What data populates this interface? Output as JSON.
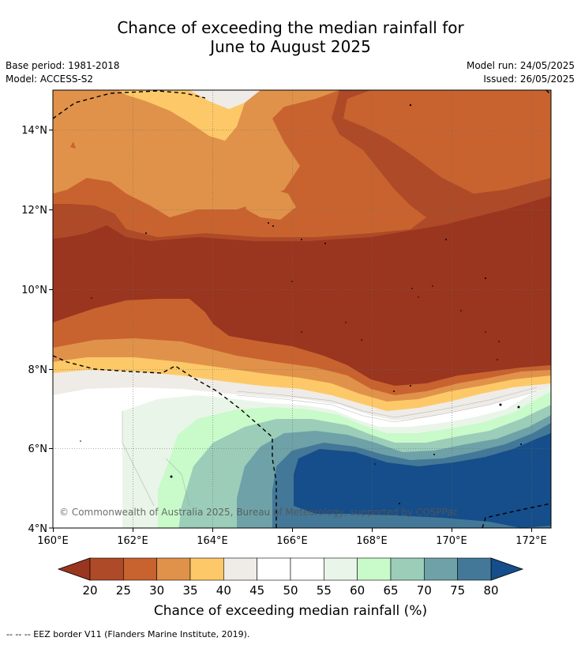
{
  "title_line1": "Chance of exceeding the median rainfall for",
  "title_line2": "June to August 2025",
  "base_period": "Base period: 1981-2018",
  "model": "Model: ACCESS-S2",
  "model_run": "Model run: 24/05/2025",
  "issued": "Issued: 26/05/2025",
  "copyright": "© Commonwealth of Australia 2025, Bureau of Meteorology, supported by COSPPac",
  "y_ticks": [
    "14°N",
    "12°N",
    "10°N",
    "8°N",
    "6°N",
    "4°N"
  ],
  "x_ticks": [
    "160°E",
    "162°E",
    "164°E",
    "166°E",
    "168°E",
    "170°E",
    "172°E"
  ],
  "colorbar": {
    "label": "Chance of exceeding median rainfall (%)",
    "ticks": [
      "20",
      "25",
      "30",
      "35",
      "40",
      "45",
      "50",
      "55",
      "60",
      "65",
      "70",
      "75",
      "80"
    ],
    "colors": [
      "#ae4a27",
      "#c8632f",
      "#e0924a",
      "#fdc968",
      "#efebe6",
      "#ffffff",
      "#ffffff",
      "#e9f5e8",
      "#c9fac9",
      "#9bcdb9",
      "#6ea2a8",
      "#447898"
    ],
    "under_color": "#9a3520",
    "over_color": "#154e8a"
  },
  "footer": "-- -- -- EEZ border V11 (Flanders Marine Institute, 2019)."
}
